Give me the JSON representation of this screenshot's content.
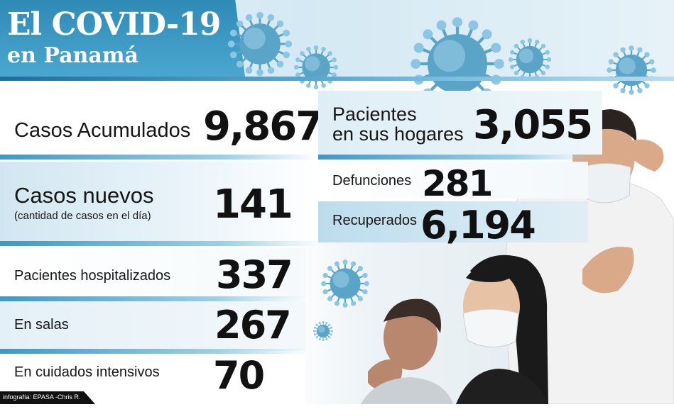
{
  "header": {
    "title_line1": "El COVID-19",
    "title_line2": "en Panamá"
  },
  "stats": {
    "casos_acumulados": {
      "label": "Casos Acumulados",
      "value": "9,867"
    },
    "casos_nuevos": {
      "label": "Casos nuevos",
      "sublabel": "(cantidad de casos en el día)",
      "value": "141"
    },
    "pacientes_hogares": {
      "label_line1": "Pacientes",
      "label_line2": "en sus hogares",
      "value": "3,055"
    },
    "defunciones": {
      "label": "Defunciones",
      "value": "281"
    },
    "recuperados": {
      "label": "Recuperados",
      "value": "6,194"
    },
    "hospitalizados": {
      "label": "Pacientes hospitalizados",
      "value": "337"
    },
    "en_salas": {
      "label": "En salas",
      "value": "267"
    },
    "cuidados_intensivos": {
      "label": "En cuidados intensivos",
      "value": "70"
    }
  },
  "credit": "infografía: EPASA -Chris R.",
  "colors": {
    "accent_blue": "#2f8bb6",
    "light_blue": "#d2e6f1",
    "virus_blue": "#5aa4c8",
    "text_dark": "#111111"
  },
  "icons": [
    "virus-icon",
    "man-with-mask-illustration",
    "woman-with-mask-illustration",
    "man-coughing-illustration"
  ]
}
